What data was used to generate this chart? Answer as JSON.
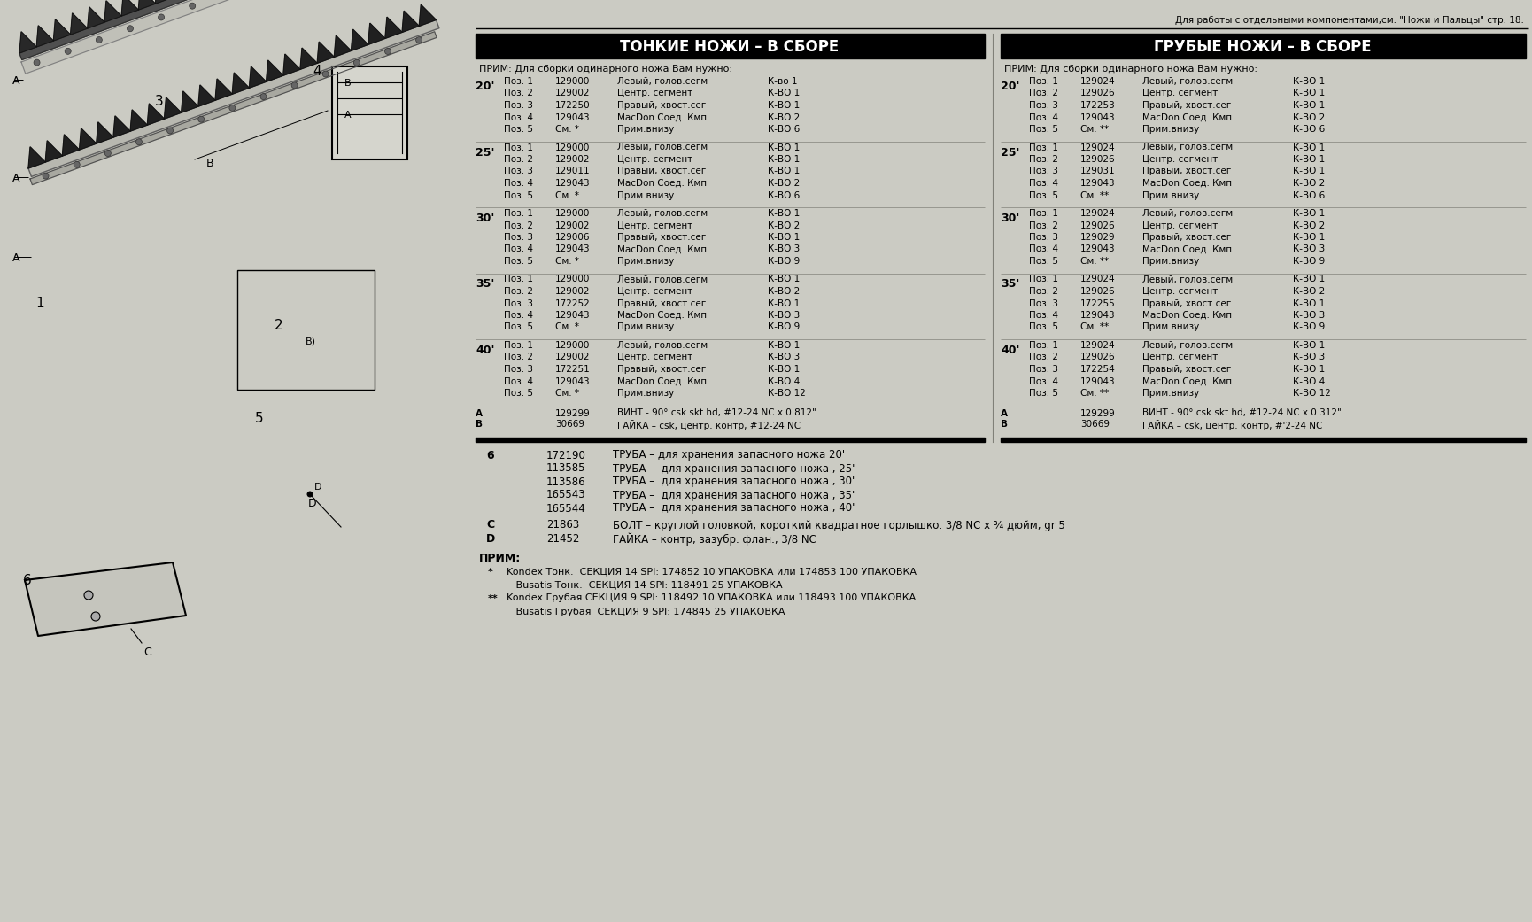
{
  "title_top": "Для работы с отдельными компонентами,см. \"Ножи и Пальцы\" стр. 18.",
  "bg_color": "#cbcbc3",
  "left_header": "ТОНКИЕ НОЖИ – В СБОРЕ",
  "right_header": "ГРУБЫЕ НОЖИ – В СБОРЕ",
  "note_header": "ПРИМ: Для сборки одинарного ножа Вам нужно:",
  "thin_sections": {
    "20": [
      [
        "Поз. 1",
        "129000",
        "Левый, голов.сегм",
        "К-во 1"
      ],
      [
        "Поз. 2",
        "129002",
        "Центр. сегмент",
        "К-ВО 1"
      ],
      [
        "Поз. 3",
        "172250",
        "Правый, хвост.сег",
        "К-ВО 1"
      ],
      [
        "Поз. 4",
        "129043",
        "MacDon Соед. Кмп",
        "К-ВО 2"
      ],
      [
        "Поз. 5",
        "См. *",
        "Прим.внизу",
        "К-ВО 6"
      ]
    ],
    "25": [
      [
        "Поз. 1",
        "129000",
        "Левый, голов.сегм",
        "К-ВО 1"
      ],
      [
        "Поз. 2",
        "129002",
        "Центр. сегмент",
        "К-ВО 1"
      ],
      [
        "Поз. 3",
        "129011",
        "Правый, хвост.сег",
        "К-ВО 1"
      ],
      [
        "Поз. 4",
        "129043",
        "MacDon Соед. Кмп",
        "К-ВО 2"
      ],
      [
        "Поз. 5",
        "См. *",
        "Прим.внизу",
        "К-ВО 6"
      ]
    ],
    "30": [
      [
        "Поз. 1",
        "129000",
        "Левый, голов.сегм",
        "К-ВО 1"
      ],
      [
        "Поз. 2",
        "129002",
        "Центр. сегмент",
        "К-ВО 2"
      ],
      [
        "Поз. 3",
        "129006",
        "Правый, хвост.сег",
        "К-ВО 1"
      ],
      [
        "Поз. 4",
        "129043",
        "MacDon Соед. Кмп",
        "К-ВО 3"
      ],
      [
        "Поз. 5",
        "См. *",
        "Прим.внизу",
        "К-ВО 9"
      ]
    ],
    "35": [
      [
        "Поз. 1",
        "129000",
        "Левый, голов.сегм",
        "К-ВО 1"
      ],
      [
        "Поз. 2",
        "129002",
        "Центр. сегмент",
        "К-ВО 2"
      ],
      [
        "Поз. 3",
        "172252",
        "Правый, хвост.сег",
        "К-ВО 1"
      ],
      [
        "Поз. 4",
        "129043",
        "MacDon Соед. Кмп",
        "К-ВО 3"
      ],
      [
        "Поз. 5",
        "См. *",
        "Прим.внизу",
        "К-ВО 9"
      ]
    ],
    "40": [
      [
        "Поз. 1",
        "129000",
        "Левый, голов.сегм",
        "К-ВО 1"
      ],
      [
        "Поз. 2",
        "129002",
        "Центр. сегмент",
        "К-ВО 3"
      ],
      [
        "Поз. 3",
        "172251",
        "Правый, хвост.сег",
        "К-ВО 1"
      ],
      [
        "Поз. 4",
        "129043",
        "MacDon Соед. Кмп",
        "К-ВО 4"
      ],
      [
        "Поз. 5",
        "См. *",
        "Прим.внизу",
        "К-ВО 12"
      ]
    ]
  },
  "rough_sections": {
    "20": [
      [
        "Поз. 1",
        "129024",
        "Левый, голов.сегм",
        "К-ВО 1"
      ],
      [
        "Поз. 2",
        "129026",
        "Центр. сегмент",
        "К-ВО 1"
      ],
      [
        "Поз. 3",
        "172253",
        "Правый, хвост.сег",
        "К-ВО 1"
      ],
      [
        "Поз. 4",
        "129043",
        "MacDon Соед. Кмп",
        "К-ВО 2"
      ],
      [
        "Поз. 5",
        "См. **",
        "Прим.внизу",
        "К-ВО 6"
      ]
    ],
    "25": [
      [
        "Поз. 1",
        "129024",
        "Левый, голов.сегм",
        "К-ВО 1"
      ],
      [
        "Поз. 2",
        "129026",
        "Центр. сегмент",
        "К-ВО 1"
      ],
      [
        "Поз. 3",
        "129031",
        "Правый, хвост.сег",
        "К-ВО 1"
      ],
      [
        "Поз. 4",
        "129043",
        "MacDon Соед. Кмп",
        "К-ВО 2"
      ],
      [
        "Поз. 5",
        "См. **",
        "Прим.внизу",
        "К-ВО 6"
      ]
    ],
    "30": [
      [
        "Поз. 1",
        "129024",
        "Левый, голов.сегм",
        "К-ВО 1"
      ],
      [
        "Поз. 2",
        "129026",
        "Центр. сегмент",
        "К-ВО 2"
      ],
      [
        "Поз. 3",
        "129029",
        "Правый, хвост.сег",
        "К-ВО 1"
      ],
      [
        "Поз. 4",
        "129043",
        "MacDon Соед. Кмп",
        "К-ВО 3"
      ],
      [
        "Поз. 5",
        "См. **",
        "Прим.внизу",
        "К-ВО 9"
      ]
    ],
    "35": [
      [
        "Поз. 1",
        "129024",
        "Левый, голов.сегм",
        "К-ВО 1"
      ],
      [
        "Поз. 2",
        "129026",
        "Центр. сегмент",
        "К-ВО 2"
      ],
      [
        "Поз. 3",
        "172255",
        "Правый, хвост.сег",
        "К-ВО 1"
      ],
      [
        "Поз. 4",
        "129043",
        "MacDon Соед. Кмп",
        "К-ВО 3"
      ],
      [
        "Поз. 5",
        "См. **",
        "Прим.внизу",
        "К-ВО 9"
      ]
    ],
    "40": [
      [
        "Поз. 1",
        "129024",
        "Левый, голов.сегм",
        "К-ВО 1"
      ],
      [
        "Поз. 2",
        "129026",
        "Центр. сегмент",
        "К-ВО 3"
      ],
      [
        "Поз. 3",
        "172254",
        "Правый, хвост.сег",
        "К-ВО 1"
      ],
      [
        "Поз. 4",
        "129043",
        "MacDon Соед. Кмп",
        "К-ВО 4"
      ],
      [
        "Поз. 5",
        "См. **",
        "Прим.внизу",
        "К-ВО 12"
      ]
    ]
  },
  "thin_footer": [
    [
      "A",
      "129299",
      "ВИНТ - 90° csk skt hd, #12-24 NC x 0.812\""
    ],
    [
      "B",
      "30669",
      "ГАЙКА – csk, центр. контр, #12-24 NC"
    ]
  ],
  "rough_footer": [
    [
      "A",
      "129299",
      "ВИНТ - 90° csk skt hd, #12-24 NC x 0.312\""
    ],
    [
      "B",
      "30669",
      "ГАЙКА – csk, центр. контр, #'2-24 NC"
    ]
  ],
  "parts_list": [
    [
      "6",
      "172190",
      "ТРУБА – для хранения запасного ножа 20'"
    ],
    [
      "",
      "113585",
      "ТРУБА –  для хранения запасного ножа , 25'"
    ],
    [
      "",
      "113586",
      "ТРУБА –  для хранения запасного ножа , 30'"
    ],
    [
      "",
      "165543",
      "ТРУБА –  для хранения запасного ножа , 35'"
    ],
    [
      "",
      "165544",
      "ТРУБА –  для хранения запасного ножа , 40'"
    ]
  ],
  "parts_cd": [
    [
      "C",
      "21863",
      "БОЛТ – круглой головкой, короткий квадратное горлышко. 3/8 NC x ¾ дюйм, gr 5"
    ],
    [
      "D",
      "21452",
      "ГАЙКА – контр, зазубр. флан., 3/8 NC"
    ]
  ],
  "note_bottom_title": "ПРИМ:",
  "note_bottom_lines": [
    [
      "*",
      "  Kondex Тонк.  СЕКЦИЯ 14 SPI: 174852 10 УПАКОВКА или 174853 100 УПАКОВКА"
    ],
    [
      "",
      "     Busatis Тонк.  СЕКЦИЯ 14 SPI: 118491 25 УПАКОВКА"
    ],
    [
      "**",
      "  Kondex Грубая СЕКЦИЯ 9 SPI: 118492 10 УПАКОВКА или 118493 100 УПАКОВКА"
    ],
    [
      "",
      "     Busatis Грубая  СЕКЦИЯ 9 SPI: 174845 25 УПАКОВКА"
    ]
  ]
}
